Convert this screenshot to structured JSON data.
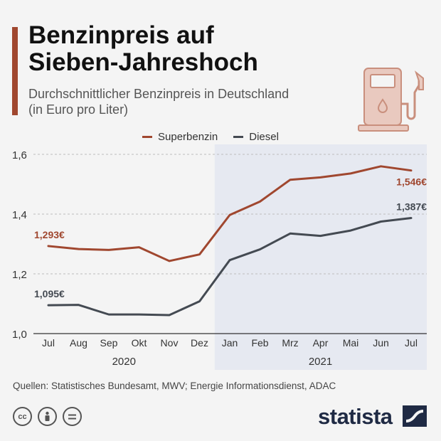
{
  "header": {
    "title_line1": "Benzinpreis auf",
    "title_line2": "Sieben-Jahreshoch",
    "subtitle_line1": "Durchschnittlicher Benzinpreis in Deutschland",
    "subtitle_line2": "(in Euro pro Liter)",
    "icon": "fuel-pump-icon"
  },
  "legend": {
    "items": [
      {
        "label": "Superbenzin",
        "color": "#a0472f"
      },
      {
        "label": "Diesel",
        "color": "#444a52"
      }
    ]
  },
  "chart_data": {
    "type": "line",
    "categories": [
      "Jul",
      "Aug",
      "Sep",
      "Okt",
      "Nov",
      "Dez",
      "Jan",
      "Feb",
      "Mrz",
      "Apr",
      "Mai",
      "Jun",
      "Jul"
    ],
    "year_labels": [
      {
        "label": "2020",
        "span": [
          "Jul",
          "Dez"
        ]
      },
      {
        "label": "2021",
        "span": [
          "Jan",
          "Jul"
        ]
      }
    ],
    "highlight_from": "Jan",
    "series": [
      {
        "name": "Superbenzin",
        "color": "#a0472f",
        "values": [
          1.293,
          1.283,
          1.28,
          1.289,
          1.243,
          1.265,
          1.397,
          1.442,
          1.515,
          1.523,
          1.536,
          1.56,
          1.546
        ],
        "start_label": "1,293€",
        "end_label": "1,546€"
      },
      {
        "name": "Diesel",
        "color": "#444a52",
        "values": [
          1.095,
          1.096,
          1.064,
          1.064,
          1.062,
          1.108,
          1.246,
          1.282,
          1.335,
          1.327,
          1.345,
          1.375,
          1.387
        ],
        "start_label": "1,095€",
        "end_label": "1,387€"
      }
    ],
    "yticks": [
      1.0,
      1.2,
      1.4,
      1.6
    ],
    "ytick_labels": [
      "1,0",
      "1,2",
      "1,4",
      "1,6"
    ],
    "ylim": [
      1.0,
      1.6
    ],
    "grid": true
  },
  "footer": {
    "source": "Quellen: Statistisches Bundesamt, MWV; Energie Informationsdienst, ADAC",
    "license_icons": [
      "cc-icon",
      "by-icon",
      "nd-icon"
    ],
    "brand": "statista"
  },
  "colors": {
    "accent": "#a0472f",
    "background": "#f4f4f4",
    "highlight": "#e6e9f1",
    "brand": "#1f2a44"
  }
}
